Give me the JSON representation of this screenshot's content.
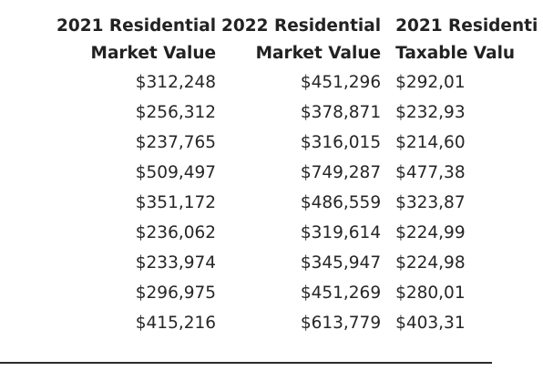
{
  "table": {
    "headers": [
      {
        "line1": "2021 Residential",
        "line2": "Market Value"
      },
      {
        "line1": "2022 Residential",
        "line2": "Market Value"
      },
      {
        "line1": "2021 Residenti",
        "line2": "Taxable Valu"
      }
    ],
    "rows": [
      [
        "$312,248",
        "$451,296",
        "$292,01"
      ],
      [
        "$256,312",
        "$378,871",
        "$232,93"
      ],
      [
        "$237,765",
        "$316,015",
        "$214,60"
      ],
      [
        "$509,497",
        "$749,287",
        "$477,38"
      ],
      [
        "$351,172",
        "$486,559",
        "$323,87"
      ],
      [
        "$236,062",
        "$319,614",
        "$224,99"
      ],
      [
        "$233,974",
        "$345,947",
        "$224,98"
      ],
      [
        "$296,975",
        "$451,269",
        "$280,01"
      ],
      [
        "$415,216",
        "$613,779",
        "$403,31"
      ]
    ]
  }
}
